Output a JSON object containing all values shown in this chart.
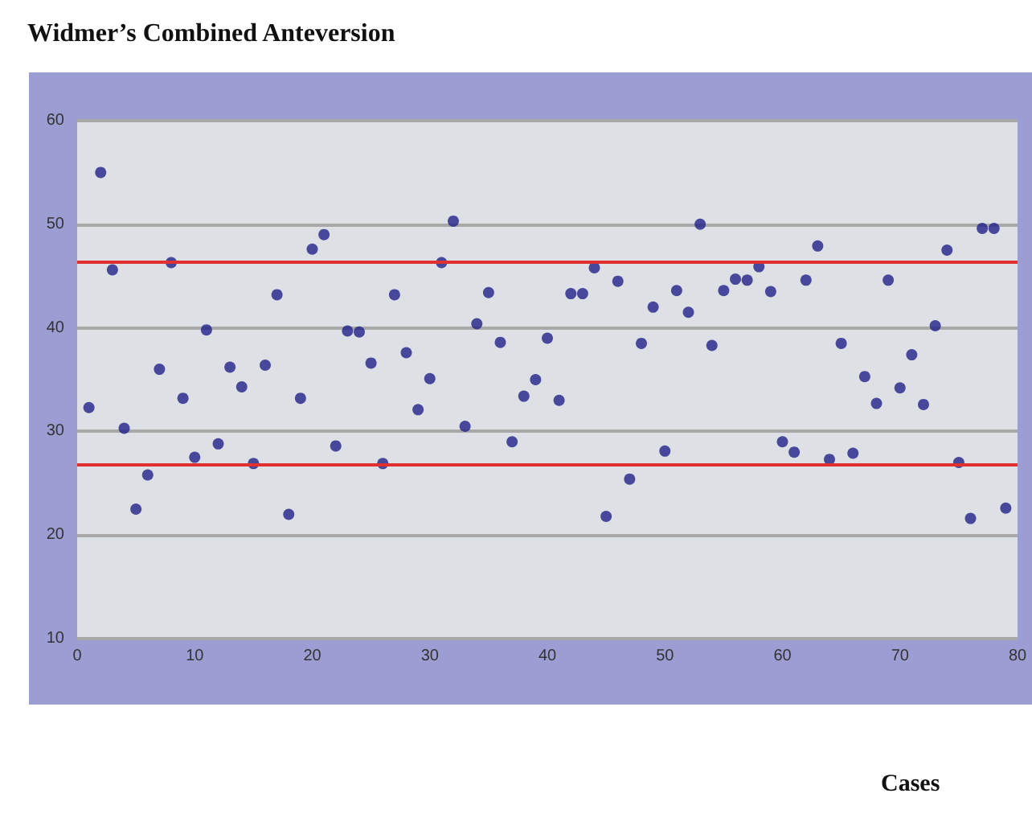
{
  "chart_data": {
    "type": "scatter",
    "title": "Widmer’s Combined Anteversion",
    "xlabel": "Cases",
    "x": [
      1,
      2,
      3,
      4,
      5,
      6,
      7,
      8,
      9,
      10,
      11,
      12,
      13,
      14,
      15,
      16,
      17,
      18,
      19,
      20,
      21,
      22,
      23,
      24,
      25,
      26,
      27,
      28,
      29,
      30,
      31,
      32,
      33,
      34,
      35,
      36,
      37,
      38,
      39,
      40,
      41,
      42,
      43,
      44,
      45,
      46,
      47,
      48,
      49,
      50,
      51,
      52,
      53,
      54,
      55,
      56,
      57,
      58,
      59,
      60,
      61,
      62,
      63,
      64,
      65,
      66,
      67,
      68,
      69,
      70,
      71,
      72,
      73,
      74,
      75,
      76,
      77,
      78,
      79
    ],
    "series": [
      {
        "color": "#22228a",
        "values": [
          32.3,
          55,
          45.6,
          30.3,
          22.5,
          25.8,
          36,
          46.3,
          33.2,
          27.5,
          39.8,
          28.8,
          36.2,
          34.3,
          26.9,
          36.4,
          43.2,
          22,
          33.2,
          47.6,
          49,
          28.6,
          39.7,
          39.6,
          36.6,
          26.9,
          43.2,
          37.6,
          32.1,
          35.1,
          46.3,
          50.3,
          30.5,
          40.4,
          43.4,
          38.6,
          29,
          33.4,
          35,
          39,
          33,
          43.3,
          43.3,
          45.8,
          21.8,
          44.5,
          25.4,
          38.5,
          42,
          28.1,
          43.6,
          41.5,
          50,
          38.3,
          43.6,
          44.7,
          44.6,
          45.9,
          43.5,
          29,
          28,
          44.6,
          47.9,
          27.3,
          38.5,
          27.9,
          35.3,
          32.7,
          44.6,
          34.2,
          37.4,
          32.6,
          40.2,
          47.5,
          27,
          21.6,
          49.6,
          49.6,
          22.6
        ]
      }
    ],
    "xlim": [
      0,
      80
    ],
    "xticks": [
      0,
      10,
      20,
      30,
      40,
      50,
      60,
      70,
      80
    ],
    "ylim": [
      10,
      60
    ],
    "yticks": [
      10,
      20,
      30,
      40,
      50,
      60
    ],
    "grid": "y",
    "marker": "circle",
    "ref_lines": [
      {
        "axis": "y",
        "value": 46.4,
        "color": "#e03030"
      },
      {
        "axis": "y",
        "value": 26.8,
        "color": "#e03030"
      }
    ]
  }
}
